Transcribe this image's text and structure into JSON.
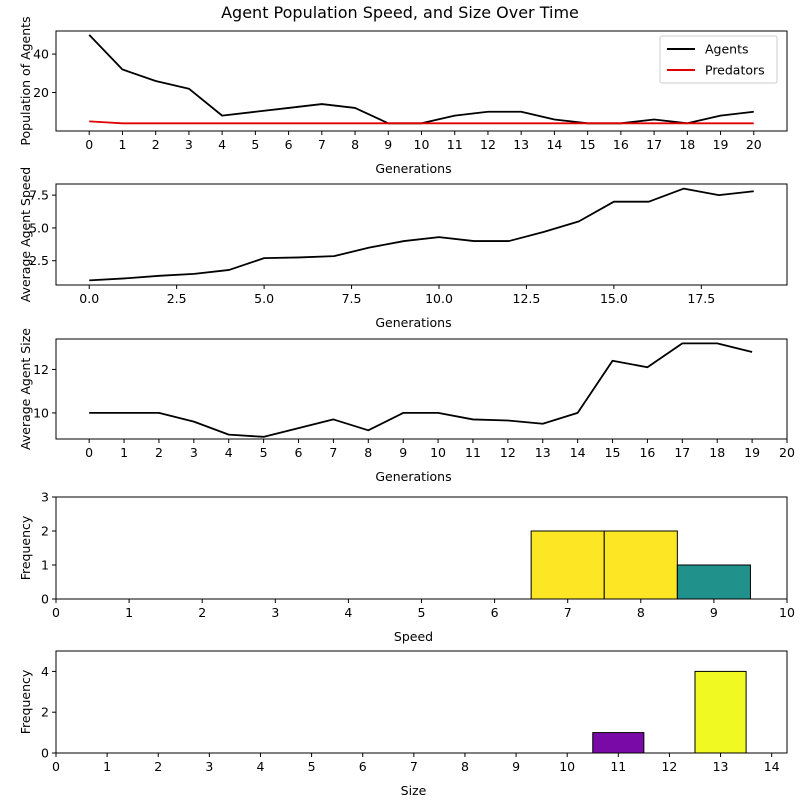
{
  "figure": {
    "title": "Agent Population Speed, and Size Over Time"
  },
  "chart_data": [
    {
      "type": "line",
      "xlabel": "Generations",
      "ylabel": "Population of Agents",
      "xlim": [
        -1,
        21
      ],
      "ylim": [
        0,
        52
      ],
      "xticks": [
        0,
        1,
        2,
        3,
        4,
        5,
        6,
        7,
        8,
        9,
        10,
        11,
        12,
        13,
        14,
        15,
        16,
        17,
        18,
        19,
        20
      ],
      "xtick_labels": [
        "0",
        "1",
        "2",
        "3",
        "4",
        "5",
        "6",
        "7",
        "8",
        "9",
        "10",
        "11",
        "12",
        "13",
        "14",
        "15",
        "16",
        "17",
        "18",
        "19",
        "20"
      ],
      "yticks": [
        20,
        40
      ],
      "ytick_labels": [
        "20",
        "40"
      ],
      "legend": "top-right",
      "x": [
        0,
        1,
        2,
        3,
        4,
        5,
        6,
        7,
        8,
        9,
        10,
        11,
        12,
        13,
        14,
        15,
        16,
        17,
        18,
        19,
        20
      ],
      "series": [
        {
          "name": "Agents",
          "color": "#000000",
          "values": [
            50,
            32,
            26,
            22,
            8,
            10,
            12,
            14,
            12,
            4,
            4,
            8,
            10,
            10,
            6,
            4,
            4,
            6,
            4,
            8,
            10
          ]
        },
        {
          "name": "Predators",
          "color": "#e00000",
          "values": [
            5,
            4,
            4,
            4,
            4,
            4,
            4,
            4,
            4,
            4,
            4,
            4,
            4,
            4,
            4,
            4,
            4,
            4,
            4,
            4,
            4
          ]
        }
      ]
    },
    {
      "type": "line",
      "xlabel": "Generations",
      "ylabel": "Average Agent Speed",
      "xlim": [
        -0.95,
        19.95
      ],
      "ylim": [
        0.65,
        8.35
      ],
      "xticks": [
        0,
        2.5,
        5,
        7.5,
        10,
        12.5,
        15,
        17.5
      ],
      "xtick_labels": [
        "0.0",
        "2.5",
        "5.0",
        "7.5",
        "10.0",
        "12.5",
        "15.0",
        "17.5"
      ],
      "yticks": [
        2.5,
        5,
        7.5
      ],
      "ytick_labels": [
        "2.5",
        "5.0",
        "7.5"
      ],
      "x": [
        0,
        1,
        2,
        3,
        4,
        5,
        6,
        7,
        8,
        9,
        10,
        11,
        12,
        13,
        14,
        15,
        16,
        17,
        18,
        19
      ],
      "series": [
        {
          "color": "#000000",
          "values": [
            1.0,
            1.15,
            1.35,
            1.5,
            1.8,
            2.7,
            2.75,
            2.85,
            3.5,
            4.0,
            4.3,
            4.0,
            4.0,
            4.7,
            5.5,
            7.0,
            7.0,
            8.0,
            7.5,
            7.8
          ]
        }
      ]
    },
    {
      "type": "line",
      "xlabel": "Generations",
      "ylabel": "Average Agent Size",
      "xlim": [
        -0.95,
        20
      ],
      "ylim": [
        8.8,
        13.4
      ],
      "xticks": [
        0,
        1,
        2,
        3,
        4,
        5,
        6,
        7,
        8,
        9,
        10,
        11,
        12,
        13,
        14,
        15,
        16,
        17,
        18,
        19,
        20
      ],
      "xtick_labels": [
        "0",
        "1",
        "2",
        "3",
        "4",
        "5",
        "6",
        "7",
        "8",
        "9",
        "10",
        "11",
        "12",
        "13",
        "14",
        "15",
        "16",
        "17",
        "18",
        "19",
        "20"
      ],
      "yticks": [
        10,
        12
      ],
      "ytick_labels": [
        "10",
        "12"
      ],
      "x": [
        0,
        1,
        2,
        3,
        4,
        5,
        6,
        7,
        8,
        9,
        10,
        11,
        12,
        13,
        14,
        15,
        16,
        17,
        18,
        19
      ],
      "series": [
        {
          "color": "#000000",
          "values": [
            10,
            10,
            10,
            9.6,
            9.0,
            8.9,
            9.3,
            9.7,
            9.2,
            10,
            10,
            9.7,
            9.65,
            9.5,
            10,
            12.4,
            12.1,
            13.2,
            13.2,
            12.8
          ]
        }
      ]
    },
    {
      "type": "bar",
      "xlabel": "Speed",
      "ylabel": "Frequency",
      "xlim": [
        0,
        10
      ],
      "ylim": [
        0,
        3
      ],
      "xticks": [
        0,
        1,
        2,
        3,
        4,
        5,
        6,
        7,
        8,
        9,
        10
      ],
      "xtick_labels": [
        "0",
        "1",
        "2",
        "3",
        "4",
        "5",
        "6",
        "7",
        "8",
        "9",
        "10"
      ],
      "yticks": [
        0,
        1,
        2,
        3
      ],
      "ytick_labels": [
        "0",
        "1",
        "2",
        "3"
      ],
      "categories": [
        7,
        8,
        9
      ],
      "values": [
        2,
        2,
        1
      ],
      "colors": [
        "#fde725",
        "#fde725",
        "#21918c"
      ]
    },
    {
      "type": "bar",
      "xlabel": "Size",
      "ylabel": "Frequency",
      "xlim": [
        0,
        14.3
      ],
      "ylim": [
        0,
        5
      ],
      "xticks": [
        0,
        1,
        2,
        3,
        4,
        5,
        6,
        7,
        8,
        9,
        10,
        11,
        12,
        13,
        14
      ],
      "xtick_labels": [
        "0",
        "1",
        "2",
        "3",
        "4",
        "5",
        "6",
        "7",
        "8",
        "9",
        "10",
        "11",
        "12",
        "13",
        "14"
      ],
      "yticks": [
        0,
        2,
        4
      ],
      "ytick_labels": [
        "0",
        "2",
        "4"
      ],
      "categories": [
        11,
        13
      ],
      "values": [
        1,
        4
      ],
      "colors": [
        "#7a0aa8",
        "#f0f921"
      ]
    }
  ]
}
